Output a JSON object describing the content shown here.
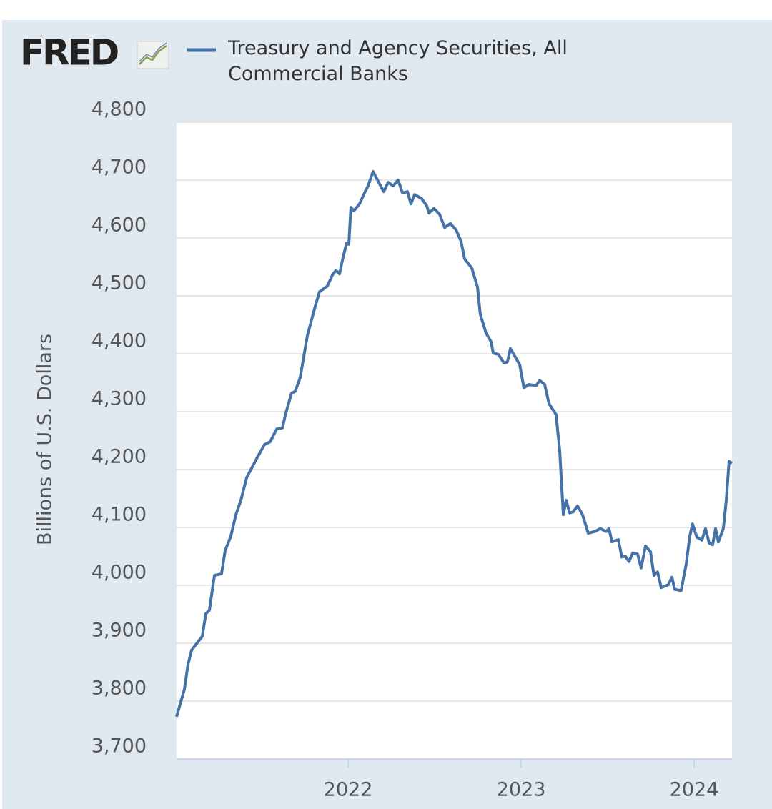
{
  "chart_data": {
    "type": "line",
    "logo": "FRED",
    "y_label": "Billions of U.S. Dollars",
    "x": [
      2021.008,
      2021.029,
      2021.053,
      2021.074,
      2021.095,
      2021.157,
      2021.177,
      2021.198,
      2021.227,
      2021.268,
      2021.289,
      2021.322,
      2021.351,
      2021.38,
      2021.413,
      2021.475,
      2021.516,
      2021.549,
      2021.587,
      2021.62,
      2021.64,
      2021.673,
      2021.694,
      2021.723,
      2021.764,
      2021.806,
      2021.834,
      2021.88,
      2021.909,
      2021.929,
      2021.95,
      2021.971,
      2021.991,
      2022.004,
      2022.016,
      2022.033,
      2022.066,
      2022.095,
      2022.115,
      2022.144,
      2022.177,
      2022.206,
      2022.231,
      2022.26,
      2022.289,
      2022.314,
      2022.343,
      2022.363,
      2022.384,
      2022.425,
      2022.454,
      2022.467,
      2022.496,
      2022.529,
      2022.558,
      2022.591,
      2022.624,
      2022.653,
      2022.673,
      2022.715,
      2022.748,
      2022.764,
      2022.797,
      2022.826,
      2022.839,
      2022.868,
      2022.901,
      2022.921,
      2022.938,
      2022.992,
      2023.016,
      2023.045,
      2023.087,
      2023.107,
      2023.136,
      2023.161,
      2023.202,
      2023.223,
      2023.244,
      2023.26,
      2023.281,
      2023.301,
      2023.326,
      2023.355,
      2023.388,
      2023.426,
      2023.458,
      2023.491,
      2023.508,
      2023.525,
      2023.562,
      2023.582,
      2023.603,
      2023.624,
      2023.645,
      2023.673,
      2023.694,
      2023.719,
      2023.748,
      2023.768,
      2023.789,
      2023.81,
      2023.851,
      2023.872,
      2023.888,
      2023.925,
      2023.954,
      2023.975,
      2023.991,
      2024.016,
      2024.045,
      2024.066,
      2024.087,
      2024.107,
      2024.124,
      2024.14,
      2024.169,
      2024.186,
      2024.202,
      2024.219
    ],
    "series": [
      {
        "name": "Treasury and Agency Securities, All Commercial Banks",
        "color": "#4572a7",
        "values": [
          3773,
          3795,
          3820,
          3863,
          3888,
          3912,
          3951,
          3957,
          4017,
          4020,
          4060,
          4085,
          4122,
          4147,
          4186,
          4221,
          4243,
          4248,
          4270,
          4272,
          4298,
          4332,
          4335,
          4359,
          4431,
          4478,
          4507,
          4517,
          4536,
          4544,
          4538,
          4567,
          4591,
          4589,
          4653,
          4647,
          4659,
          4678,
          4690,
          4715,
          4696,
          4680,
          4696,
          4690,
          4700,
          4678,
          4680,
          4659,
          4675,
          4668,
          4656,
          4643,
          4651,
          4641,
          4618,
          4625,
          4614,
          4594,
          4564,
          4548,
          4515,
          4468,
          4436,
          4421,
          4401,
          4399,
          4384,
          4386,
          4409,
          4381,
          4341,
          4347,
          4345,
          4354,
          4347,
          4314,
          4295,
          4233,
          4122,
          4147,
          4125,
          4127,
          4137,
          4122,
          4090,
          4093,
          4098,
          4093,
          4098,
          4075,
          4079,
          4049,
          4050,
          4041,
          4056,
          4054,
          4030,
          4068,
          4058,
          4017,
          4023,
          3996,
          4001,
          4014,
          3993,
          3991,
          4036,
          4085,
          4106,
          4083,
          4078,
          4098,
          4073,
          4070,
          4098,
          4075,
          4098,
          4147,
          4214,
          4211
        ]
      }
    ],
    "xlim": [
      2021.008,
      2024.219
    ],
    "xticks": [
      2022,
      2023,
      2024
    ],
    "ylim": [
      3700,
      4800
    ],
    "yticks": [
      {
        "value": 3700,
        "label": "3,700"
      },
      {
        "value": 3800,
        "label": "3,800"
      },
      {
        "value": 3900,
        "label": "3,900"
      },
      {
        "value": 4000,
        "label": "4,000"
      },
      {
        "value": 4100,
        "label": "4,100"
      },
      {
        "value": 4200,
        "label": "4,200"
      },
      {
        "value": 4300,
        "label": "4,300"
      },
      {
        "value": 4400,
        "label": "4,400"
      },
      {
        "value": 4500,
        "label": "4,500"
      },
      {
        "value": 4600,
        "label": "4,600"
      },
      {
        "value": 4700,
        "label": "4,700"
      },
      {
        "value": 4800,
        "label": "4,800"
      }
    ],
    "grid": true
  }
}
